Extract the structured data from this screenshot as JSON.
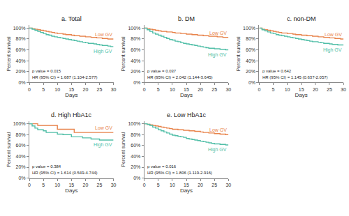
{
  "chart_data": [
    {
      "type": "step",
      "title": "a. Total",
      "xlabel": "Days",
      "ylabel": "Percent survival",
      "x": [
        0,
        1,
        2,
        3,
        4,
        5,
        6,
        7,
        8,
        9,
        10,
        11,
        12,
        13,
        14,
        15,
        16,
        17,
        18,
        19,
        20,
        21,
        22,
        23,
        24,
        25,
        26,
        27,
        28,
        29,
        30
      ],
      "series": [
        {
          "name": "Low GV",
          "color": "#E8834B",
          "values": [
            100,
            99,
            98,
            97,
            96,
            95,
            94,
            93,
            92,
            91,
            90,
            90,
            89,
            88,
            88,
            87,
            86,
            86,
            85,
            85,
            84,
            84,
            83,
            83,
            82,
            82,
            81,
            81,
            80,
            80,
            80
          ]
        },
        {
          "name": "High GV",
          "color": "#52BFA8",
          "values": [
            100,
            98,
            96,
            94,
            92,
            90,
            88,
            87,
            85,
            84,
            83,
            82,
            81,
            80,
            79,
            78,
            77,
            76,
            75,
            74,
            73,
            72,
            72,
            71,
            70,
            69,
            68,
            68,
            67,
            66,
            66
          ]
        }
      ],
      "annotations": [
        "p value = 0.015",
        "HR (95% CI) = 1.687 (1.104-2.577)"
      ],
      "xlim": [
        0,
        30
      ],
      "xticks": [
        0,
        5,
        10,
        15,
        20,
        25,
        30
      ],
      "ylim": [
        0,
        105
      ],
      "yticks": [
        {
          "value": 0,
          "label": "0%"
        },
        {
          "value": 20,
          "label": "20%"
        },
        {
          "value": 40,
          "label": "40%"
        },
        {
          "value": 60,
          "label": "60%"
        },
        {
          "value": 80,
          "label": "80%"
        },
        {
          "value": 100,
          "label": "100%"
        }
      ],
      "grid": false
    },
    {
      "type": "step",
      "title": "b. DM",
      "xlabel": "Days",
      "ylabel": "Percent survival",
      "x": [
        0,
        1,
        2,
        3,
        4,
        5,
        6,
        7,
        8,
        9,
        10,
        11,
        12,
        13,
        14,
        15,
        16,
        17,
        18,
        19,
        20,
        21,
        22,
        23,
        24,
        25,
        26,
        27,
        28,
        29,
        30
      ],
      "series": [
        {
          "name": "Low GV",
          "color": "#E8834B",
          "values": [
            100,
            99,
            98,
            97,
            96,
            95,
            94,
            94,
            93,
            93,
            92,
            91,
            91,
            90,
            90,
            89,
            89,
            88,
            88,
            87,
            87,
            86,
            86,
            85,
            85,
            85,
            84,
            84,
            83,
            83,
            83
          ]
        },
        {
          "name": "High GV",
          "color": "#52BFA8",
          "values": [
            100,
            97,
            94,
            91,
            89,
            87,
            85,
            83,
            81,
            79,
            78,
            76,
            75,
            73,
            72,
            71,
            70,
            69,
            68,
            67,
            66,
            65,
            64,
            63,
            63,
            62,
            62,
            61,
            61,
            60,
            60
          ]
        }
      ],
      "annotations": [
        "p value = 0.037",
        "HR (95% CI) = 2.042 (1.144-3.645)"
      ],
      "xlim": [
        0,
        30
      ],
      "xticks": [
        0,
        5,
        10,
        15,
        20,
        25,
        30
      ],
      "ylim": [
        0,
        105
      ],
      "yticks": [
        {
          "value": 0,
          "label": "0%"
        },
        {
          "value": 20,
          "label": "20%"
        },
        {
          "value": 40,
          "label": "40%"
        },
        {
          "value": 60,
          "label": "60%"
        },
        {
          "value": 80,
          "label": "80%"
        },
        {
          "value": 100,
          "label": "100%"
        }
      ],
      "grid": false
    },
    {
      "type": "step",
      "title": "c. non-DM",
      "xlabel": "Days",
      "ylabel": "Percent survival",
      "x": [
        0,
        1,
        2,
        3,
        4,
        5,
        6,
        7,
        8,
        9,
        10,
        11,
        12,
        13,
        14,
        15,
        16,
        17,
        18,
        19,
        20,
        21,
        22,
        23,
        24,
        25,
        26,
        27,
        28,
        29,
        30
      ],
      "series": [
        {
          "name": "Low GV",
          "color": "#E8834B",
          "values": [
            100,
            98,
            97,
            96,
            95,
            94,
            93,
            92,
            91,
            91,
            90,
            90,
            89,
            88,
            88,
            87,
            87,
            86,
            86,
            85,
            85,
            84,
            84,
            83,
            83,
            82,
            82,
            81,
            81,
            80,
            80
          ]
        },
        {
          "name": "High GV",
          "color": "#52BFA8",
          "values": [
            100,
            97,
            95,
            93,
            91,
            90,
            88,
            87,
            86,
            85,
            84,
            83,
            82,
            81,
            80,
            79,
            78,
            77,
            76,
            75,
            75,
            74,
            73,
            72,
            72,
            71,
            70,
            70,
            69,
            69,
            68
          ]
        }
      ],
      "annotations": [
        "p value = 0.642",
        "HR (95% CI) = 1.145 (0.637-2.057)"
      ],
      "xlim": [
        0,
        30
      ],
      "xticks": [
        0,
        5,
        10,
        15,
        20,
        25,
        30
      ],
      "ylim": [
        0,
        105
      ],
      "yticks": [
        {
          "value": 0,
          "label": "0%"
        },
        {
          "value": 20,
          "label": "20%"
        },
        {
          "value": 40,
          "label": "40%"
        },
        {
          "value": 60,
          "label": "60%"
        },
        {
          "value": 80,
          "label": "80%"
        },
        {
          "value": 100,
          "label": "100%"
        }
      ],
      "grid": false
    },
    {
      "type": "step",
      "title": "d. High HbA1c",
      "xlabel": "Days",
      "ylabel": "Percent survival",
      "x": [
        0,
        1,
        2,
        3,
        4,
        5,
        6,
        7,
        8,
        9,
        10,
        11,
        12,
        13,
        14,
        15,
        16,
        17,
        18,
        19,
        20,
        21,
        22,
        23,
        24,
        25,
        26,
        27,
        28,
        29,
        30
      ],
      "series": [
        {
          "name": "Low GV",
          "color": "#E8834B",
          "values": [
            100,
            100,
            100,
            97,
            97,
            97,
            97,
            97,
            97,
            97,
            90,
            90,
            90,
            90,
            90,
            90,
            84,
            84,
            84,
            84,
            84,
            84,
            84,
            84,
            84,
            84,
            84,
            84,
            84,
            84,
            84
          ]
        },
        {
          "name": "High GV",
          "color": "#52BFA8",
          "values": [
            100,
            96,
            92,
            89,
            89,
            87,
            84,
            84,
            84,
            84,
            81,
            81,
            80,
            80,
            80,
            76,
            76,
            76,
            76,
            74,
            74,
            74,
            72,
            72,
            72,
            70,
            70,
            70,
            70,
            70,
            70
          ]
        }
      ],
      "annotations": [
        "p value = 0.384",
        "HR (95% CI) = 1.614 (0.549-4.744)"
      ],
      "xlim": [
        0,
        30
      ],
      "xticks": [
        0,
        5,
        10,
        15,
        20,
        25,
        30
      ],
      "ylim": [
        0,
        105
      ],
      "yticks": [
        {
          "value": 0,
          "label": "0%"
        },
        {
          "value": 20,
          "label": "20%"
        },
        {
          "value": 40,
          "label": "40%"
        },
        {
          "value": 60,
          "label": "60%"
        },
        {
          "value": 80,
          "label": "80%"
        },
        {
          "value": 100,
          "label": "100%"
        }
      ],
      "grid": false
    },
    {
      "type": "step",
      "title": "e. Low HbA1c",
      "xlabel": "Days",
      "ylabel": "Percent survival",
      "x": [
        0,
        1,
        2,
        3,
        4,
        5,
        6,
        7,
        8,
        9,
        10,
        11,
        12,
        13,
        14,
        15,
        16,
        17,
        18,
        19,
        20,
        21,
        22,
        23,
        24,
        25,
        26,
        27,
        28,
        29,
        30
      ],
      "series": [
        {
          "name": "Low GV",
          "color": "#E8834B",
          "values": [
            100,
            99,
            98,
            97,
            96,
            95,
            94,
            93,
            92,
            91,
            90,
            90,
            89,
            89,
            88,
            88,
            87,
            87,
            86,
            86,
            85,
            84,
            84,
            83,
            83,
            82,
            82,
            81,
            81,
            80,
            80
          ]
        },
        {
          "name": "High GV",
          "color": "#52BFA8",
          "values": [
            100,
            99,
            97,
            94,
            92,
            89,
            87,
            85,
            83,
            81,
            79,
            78,
            77,
            76,
            75,
            73,
            72,
            71,
            70,
            69,
            68,
            67,
            66,
            65,
            64,
            63,
            63,
            62,
            62,
            61,
            61
          ]
        }
      ],
      "annotations": [
        "p value = 0.016",
        "HR (95% CI) = 1.806 (1.119-2.916)"
      ],
      "xlim": [
        0,
        30
      ],
      "xticks": [
        0,
        5,
        10,
        15,
        20,
        25,
        30
      ],
      "ylim": [
        0,
        105
      ],
      "yticks": [
        {
          "value": 0,
          "label": "0%"
        },
        {
          "value": 20,
          "label": "20%"
        },
        {
          "value": 40,
          "label": "40%"
        },
        {
          "value": 60,
          "label": "60%"
        },
        {
          "value": 80,
          "label": "80%"
        },
        {
          "value": 100,
          "label": "100%"
        }
      ],
      "grid": false
    }
  ]
}
